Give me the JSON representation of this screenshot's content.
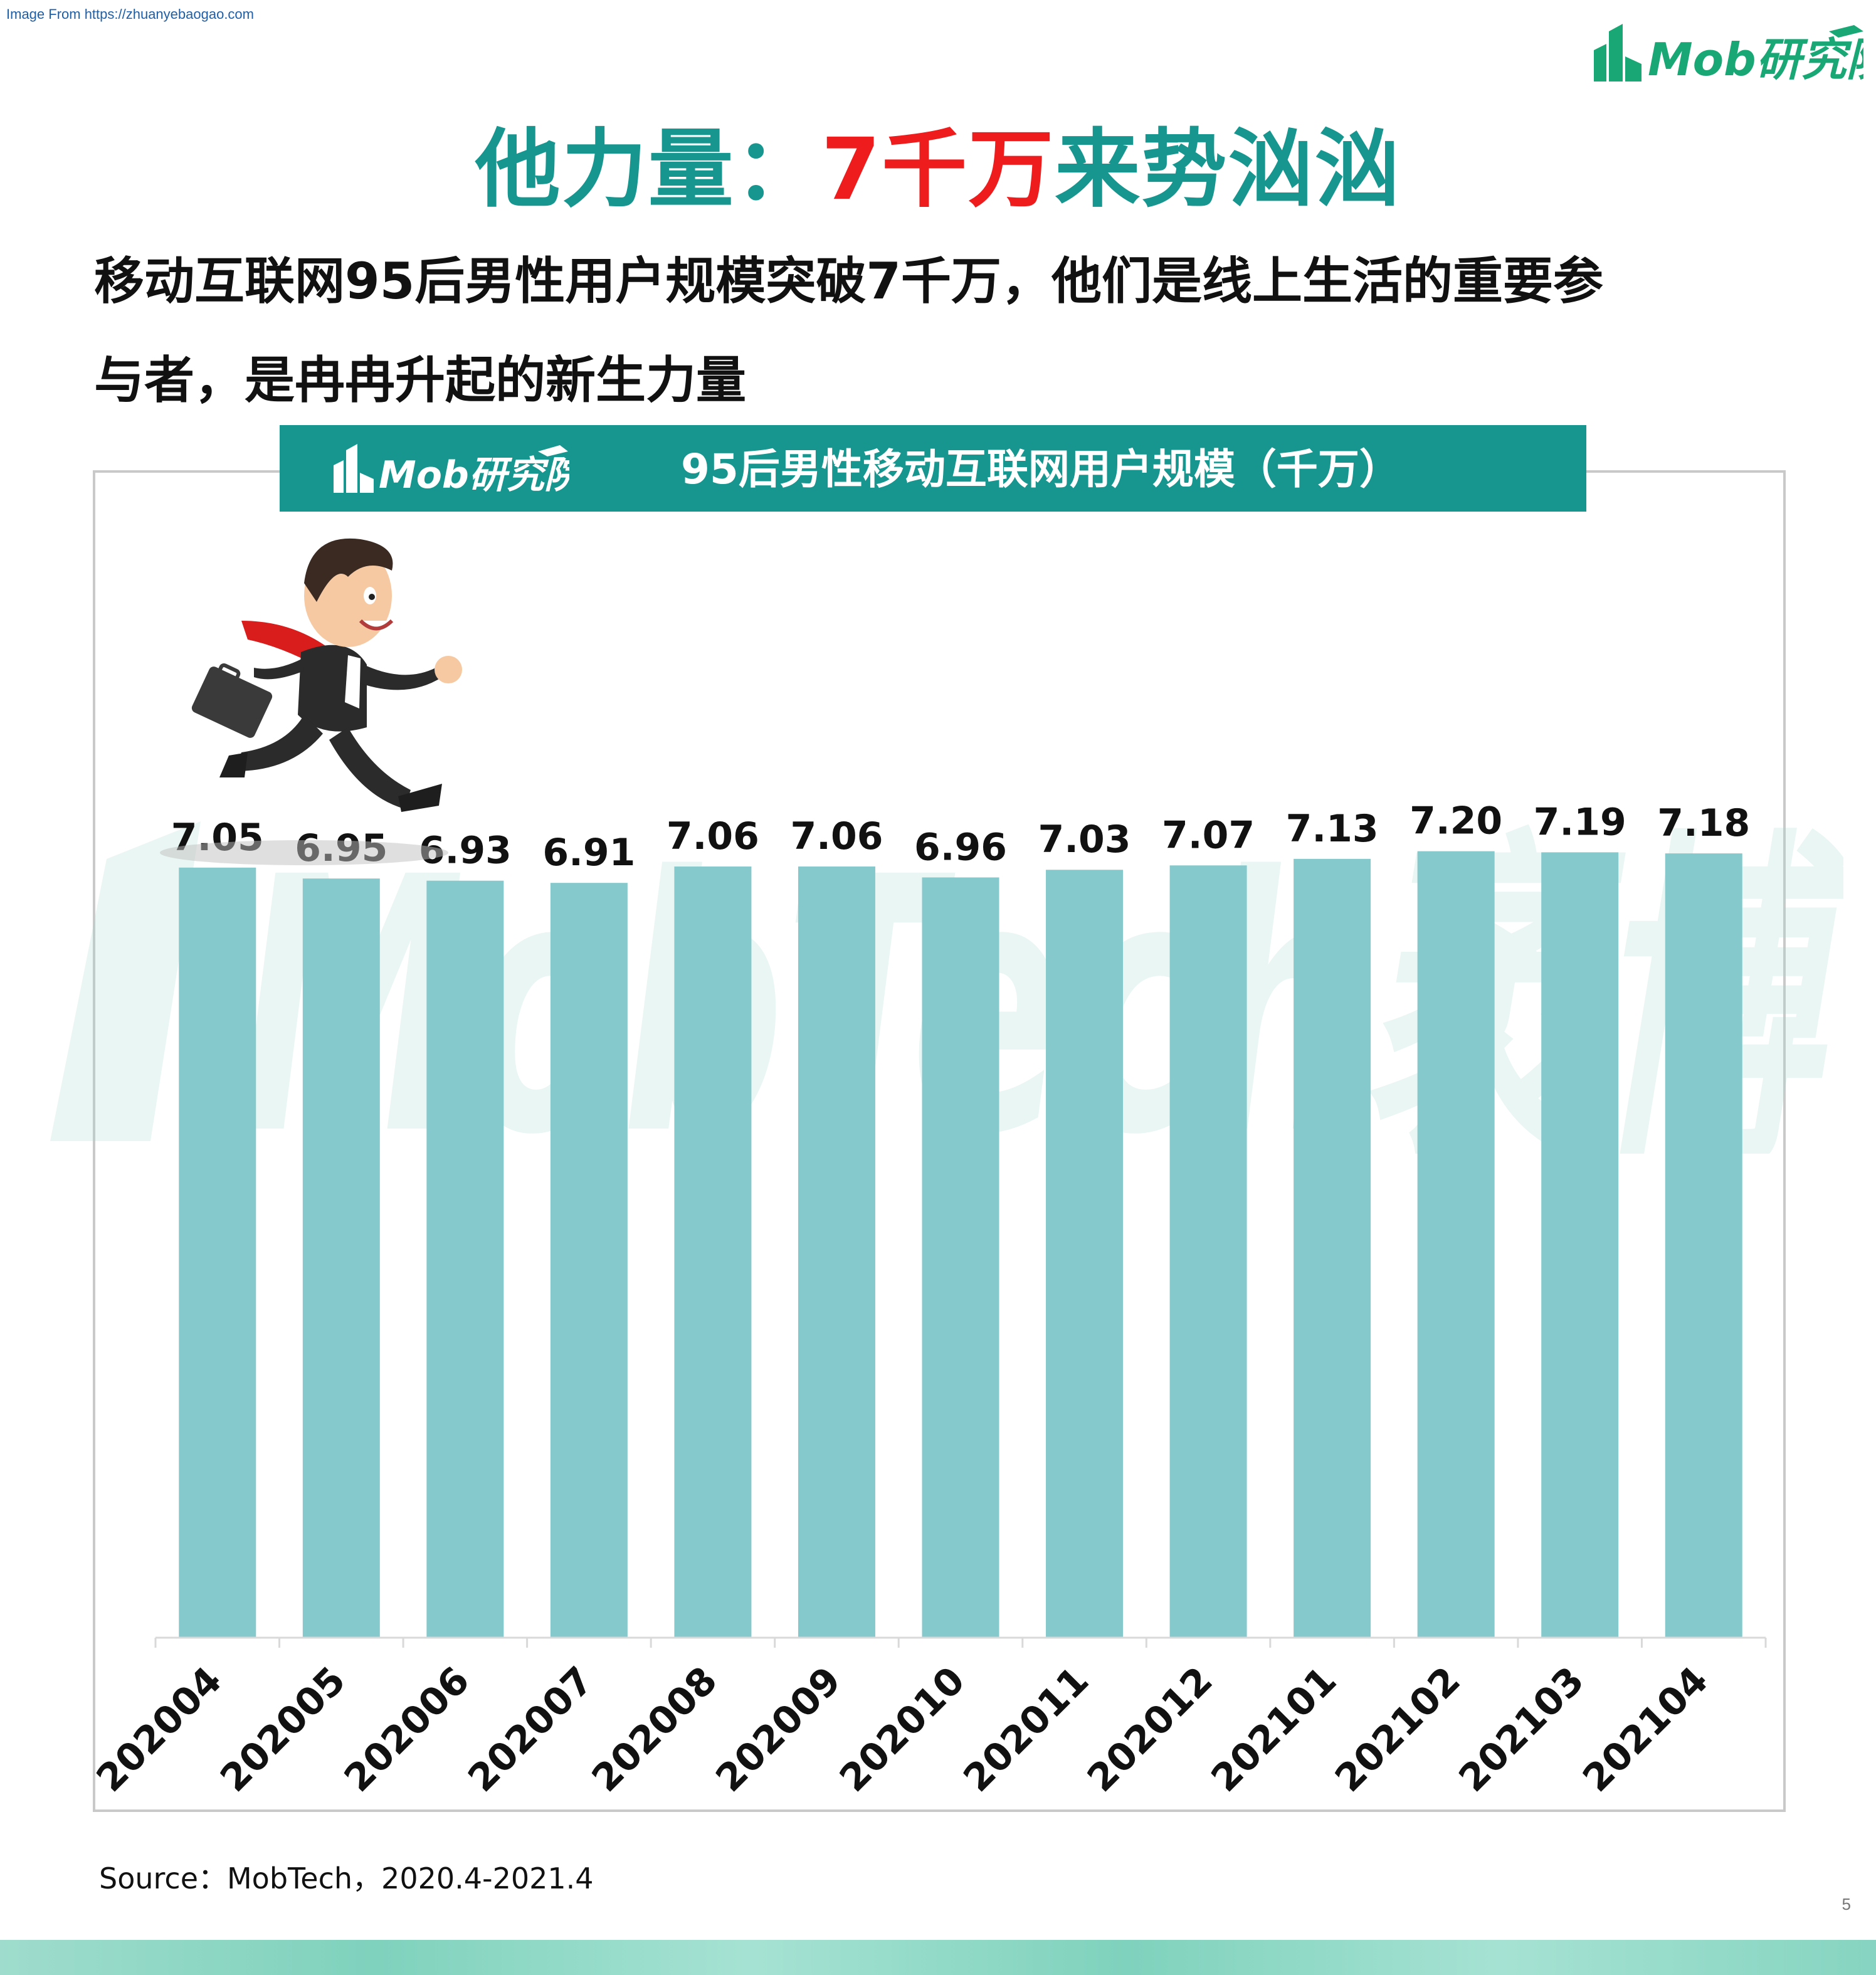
{
  "source_note": "Image From https://zhuanyebaogao.com",
  "brand": {
    "name": "Mob研究院"
  },
  "headline": {
    "part1": "他力量：",
    "accent": "7千万",
    "part2": "来势汹汹"
  },
  "subtitle": {
    "line1": "移动互联网95后男性用户规模突破7千万，他们是线上生活的重要参",
    "line2": "与者，是冉冉升起的新生力量"
  },
  "watermark": "MobTech袤博",
  "colors": {
    "teal": "#17968f",
    "bar": "#86c9cd",
    "accent": "#ee1c1c"
  },
  "chart_data": {
    "type": "bar",
    "title": "95后男性移动互联网用户规模（千万）",
    "categories": [
      "202004",
      "202005",
      "202006",
      "202007",
      "202008",
      "202009",
      "202010",
      "202011",
      "202012",
      "202101",
      "202102",
      "202103",
      "202104"
    ],
    "values": [
      7.05,
      6.95,
      6.93,
      6.91,
      7.06,
      7.06,
      6.96,
      7.03,
      7.07,
      7.13,
      7.2,
      7.19,
      7.18
    ],
    "value_labels": [
      "7.05",
      "6.95",
      "6.93",
      "6.91",
      "7.06",
      "7.06",
      "6.96",
      "7.03",
      "7.07",
      "7.13",
      "7.20",
      "7.19",
      "7.18"
    ],
    "ylim": [
      0,
      7.68
    ],
    "grid": false,
    "legend": "none",
    "xlabel": "",
    "ylabel": ""
  },
  "footer": {
    "source": "Source：MobTech，2020.4-2021.4",
    "page": "5"
  }
}
